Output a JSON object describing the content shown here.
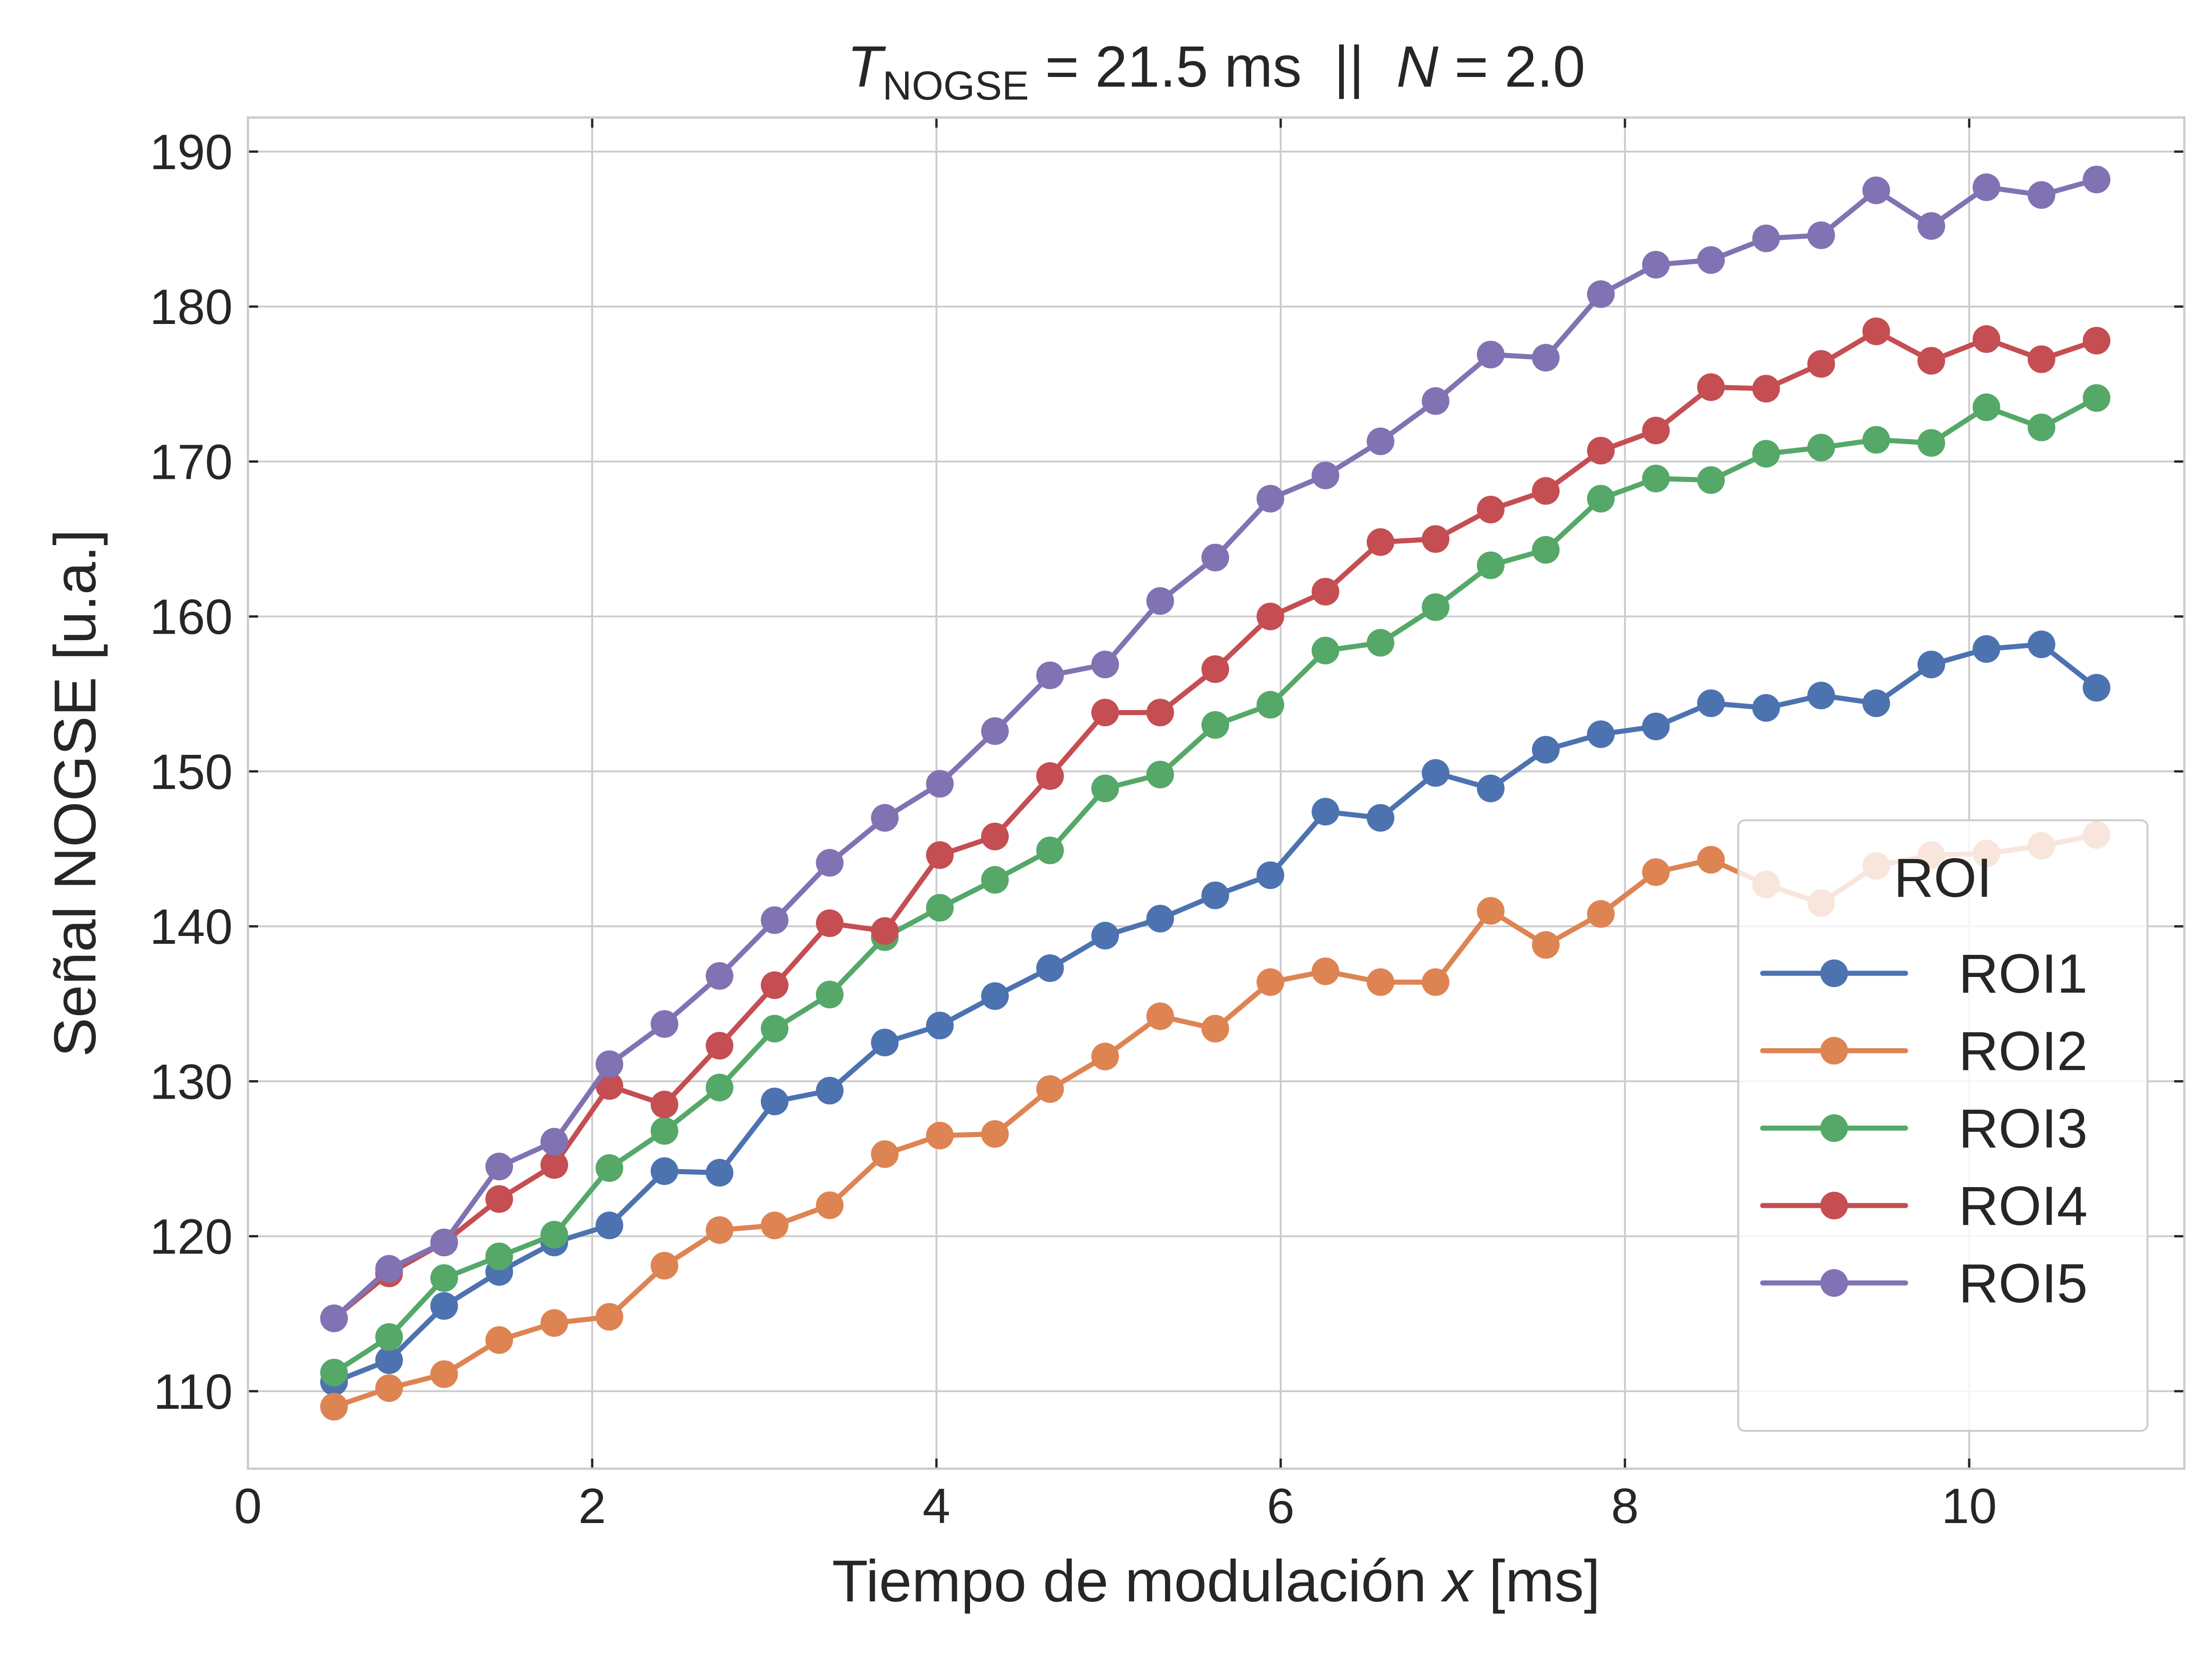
{
  "chart_data": {
    "type": "line",
    "title": {
      "t_symbol": "T",
      "t_subscript": "NOGSE",
      "part1": " = 21.5 ms  ||  ",
      "n_symbol": "N",
      "part2": " = 2.0"
    },
    "xlabel": {
      "prefix": "Tiempo de modulación ",
      "variable": "x",
      "suffix": " [ms]"
    },
    "ylabel": "Señal NOGSE [u.a.]",
    "xlim": [
      0,
      11.25
    ],
    "ylim": [
      105,
      192.2
    ],
    "xticks": [
      "0",
      "2",
      "4",
      "6",
      "8",
      "10"
    ],
    "yticks": [
      "110",
      "120",
      "130",
      "140",
      "150",
      "160",
      "170",
      "180",
      "190"
    ],
    "grid": true,
    "legend": {
      "title": "ROI",
      "position": "lower-right"
    },
    "x": [
      0.5,
      0.82,
      1.14,
      1.46,
      1.78,
      2.1,
      2.42,
      2.74,
      3.06,
      3.38,
      3.7,
      4.02,
      4.34,
      4.66,
      4.98,
      5.3,
      5.62,
      5.94,
      6.26,
      6.58,
      6.9,
      7.22,
      7.54,
      7.86,
      8.18,
      8.5,
      8.82,
      9.14,
      9.46,
      9.78,
      10.1,
      10.42,
      10.74
    ],
    "series": [
      {
        "name": "ROI1",
        "color": "#4c72b0",
        "values": [
          110.6,
          112.0,
          115.5,
          117.7,
          119.6,
          120.7,
          124.2,
          124.1,
          128.7,
          129.4,
          132.5,
          133.6,
          135.5,
          137.3,
          139.4,
          140.5,
          142.0,
          143.3,
          147.4,
          147.0,
          149.9,
          148.9,
          151.4,
          152.4,
          152.9,
          154.4,
          154.1,
          154.9,
          154.4,
          156.9,
          157.9,
          158.2,
          155.4
        ]
      },
      {
        "name": "ROI2",
        "color": "#dd8452",
        "values": [
          109.0,
          110.2,
          111.1,
          113.3,
          114.4,
          114.8,
          118.1,
          120.4,
          120.7,
          122.0,
          125.3,
          126.5,
          126.6,
          129.5,
          131.6,
          134.2,
          133.4,
          136.4,
          137.1,
          136.4,
          136.4,
          141.0,
          138.8,
          140.8,
          143.5,
          144.3,
          142.7,
          141.5,
          143.9,
          144.6,
          144.7,
          145.2,
          145.9
        ]
      },
      {
        "name": "ROI3",
        "color": "#55a868",
        "values": [
          111.2,
          113.5,
          117.3,
          118.7,
          120.1,
          124.4,
          126.8,
          129.6,
          133.4,
          135.6,
          139.3,
          141.2,
          143.0,
          144.9,
          148.9,
          149.8,
          153.0,
          154.3,
          157.8,
          158.3,
          160.6,
          163.3,
          164.3,
          167.6,
          168.9,
          168.8,
          170.5,
          170.9,
          171.4,
          171.2,
          173.5,
          172.2,
          174.1
        ]
      },
      {
        "name": "ROI4",
        "color": "#c44e52",
        "values": [
          114.7,
          117.6,
          119.6,
          122.4,
          124.6,
          129.7,
          128.5,
          132.3,
          136.2,
          140.2,
          139.7,
          144.6,
          145.8,
          149.7,
          153.8,
          153.8,
          156.6,
          160.0,
          161.6,
          164.8,
          165.0,
          166.9,
          168.1,
          170.7,
          172.0,
          174.8,
          174.7,
          176.3,
          178.4,
          176.5,
          177.9,
          176.6,
          177.8
        ]
      },
      {
        "name": "ROI5",
        "color": "#8172b3",
        "values": [
          114.7,
          117.9,
          119.6,
          124.5,
          126.1,
          131.1,
          133.7,
          136.8,
          140.4,
          144.1,
          147.0,
          149.2,
          152.6,
          156.2,
          156.9,
          161.0,
          163.8,
          167.6,
          169.1,
          171.3,
          173.9,
          176.9,
          176.7,
          180.8,
          182.7,
          183.0,
          184.4,
          184.6,
          187.5,
          185.2,
          187.7,
          187.2,
          188.2
        ]
      }
    ]
  }
}
